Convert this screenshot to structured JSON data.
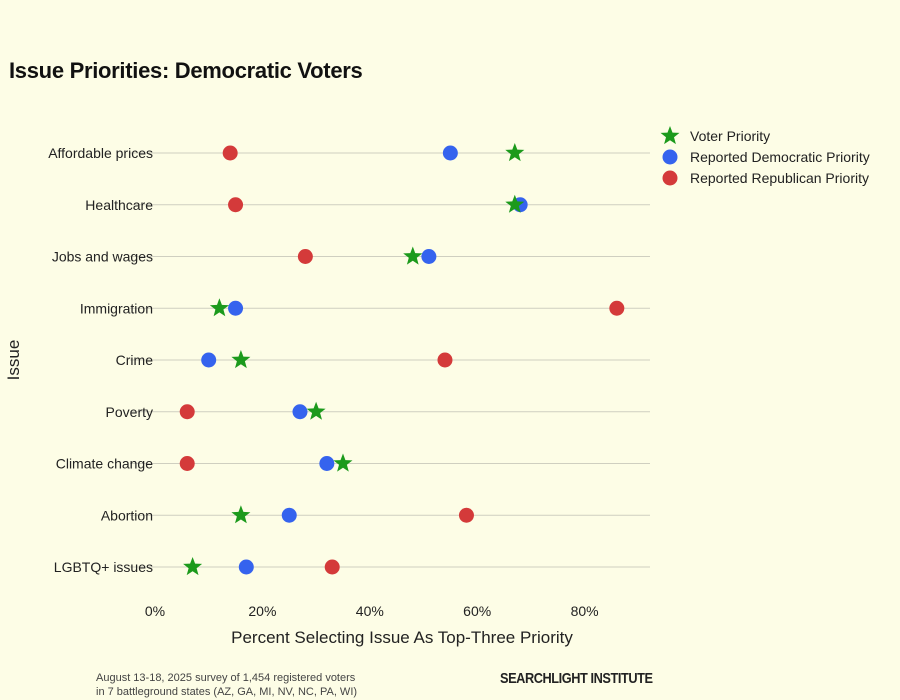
{
  "chart_data": {
    "type": "scatter",
    "title": "Issue Priorities: Democratic Voters",
    "xlabel": "Percent Selecting Issue As Top-Three Priority",
    "ylabel": "Issue",
    "xlim": [
      0,
      92
    ],
    "xticks": [
      0,
      20,
      40,
      60,
      80
    ],
    "xtick_labels": [
      "0%",
      "20%",
      "40%",
      "60%",
      "80%"
    ],
    "grid": "horizontal",
    "legend_position": "top-right",
    "categories": [
      "Affordable prices",
      "Healthcare",
      "Jobs and wages",
      "Immigration",
      "Crime",
      "Poverty",
      "Climate change",
      "Abortion",
      "LGBTQ+ issues"
    ],
    "series": [
      {
        "name": "Reported Republican Priority",
        "marker": "circle",
        "color": "#d43a3a",
        "values": [
          14,
          15,
          28,
          86,
          54,
          6,
          6,
          58,
          33
        ]
      },
      {
        "name": "Reported Democratic Priority",
        "marker": "circle",
        "color": "#3563ee",
        "values": [
          55,
          68,
          51,
          15,
          10,
          27,
          32,
          25,
          17
        ]
      },
      {
        "name": "Voter Priority",
        "marker": "star",
        "color": "#1c9a1c",
        "values": [
          67,
          67,
          48,
          12,
          16,
          30,
          35,
          16,
          7
        ]
      }
    ],
    "legend_order": [
      2,
      1,
      0
    ]
  },
  "footer": {
    "note": "August 13-18, 2025 survey of 1,454 registered voters\nin 7 battleground states (AZ, GA, MI, NV, NC, PA, WI)",
    "brand": "SEARCHLIGHT INSTITUTE"
  }
}
